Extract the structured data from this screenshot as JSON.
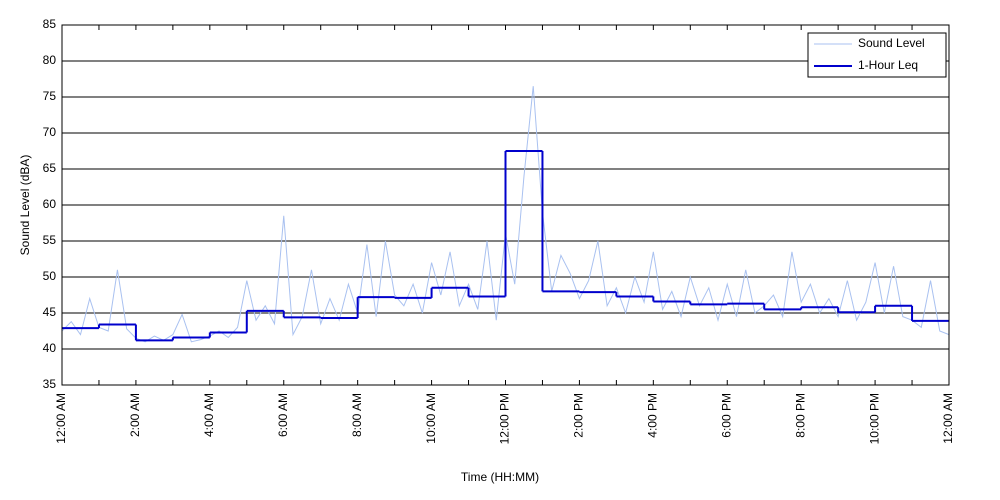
{
  "chart_data": {
    "type": "line",
    "x_label": "Time (HH:MM)",
    "y_label": "Sound Level (dBA)",
    "xlim": [
      0,
      24
    ],
    "ylim": [
      35,
      85
    ],
    "yticks": [
      35,
      40,
      45,
      50,
      55,
      60,
      65,
      70,
      75,
      80,
      85
    ],
    "xticks": [
      0,
      1,
      2,
      3,
      4,
      5,
      6,
      7,
      8,
      9,
      10,
      11,
      12,
      13,
      14,
      15,
      16,
      17,
      18,
      19,
      20,
      21,
      22,
      23,
      24
    ],
    "xtick_labels": [
      "12:00 AM",
      null,
      "2:00 AM",
      null,
      "4:00 AM",
      null,
      "6:00 AM",
      null,
      "8:00 AM",
      null,
      "10:00 AM",
      null,
      "12:00 PM",
      null,
      "2:00 PM",
      null,
      "4:00 PM",
      null,
      "6:00 PM",
      null,
      "8:00 PM",
      null,
      "10:00 PM",
      null,
      "12:00 AM"
    ],
    "grid": true,
    "legend": "upper-right",
    "series": [
      {
        "name": "Sound Level",
        "color": "#a9c1f0",
        "step": false,
        "x": [
          0,
          0.25,
          0.5,
          0.75,
          1,
          1.25,
          1.5,
          1.75,
          2,
          2.25,
          2.5,
          2.75,
          3,
          3.25,
          3.5,
          3.75,
          4,
          4.25,
          4.5,
          4.75,
          5,
          5.25,
          5.5,
          5.75,
          6,
          6.25,
          6.5,
          6.75,
          7,
          7.25,
          7.5,
          7.75,
          8,
          8.25,
          8.5,
          8.75,
          9,
          9.25,
          9.5,
          9.75,
          10,
          10.25,
          10.5,
          10.75,
          11,
          11.25,
          11.5,
          11.75,
          12,
          12.25,
          12.5,
          12.75,
          13,
          13.25,
          13.5,
          13.75,
          14,
          14.25,
          14.5,
          14.75,
          15,
          15.25,
          15.5,
          15.75,
          16,
          16.25,
          16.5,
          16.75,
          17,
          17.25,
          17.5,
          17.75,
          18,
          18.25,
          18.5,
          18.75,
          19,
          19.25,
          19.5,
          19.75,
          20,
          20.25,
          20.5,
          20.75,
          21,
          21.25,
          21.5,
          21.75,
          22,
          22.25,
          22.5,
          22.75,
          23,
          23.25,
          23.5,
          23.75,
          24
        ],
        "values": [
          42.5,
          43.8,
          42.0,
          47.0,
          43.0,
          42.5,
          51.0,
          42.8,
          41.5,
          41.0,
          41.8,
          41.2,
          42.0,
          44.8,
          41.0,
          41.3,
          41.8,
          42.5,
          41.6,
          43.0,
          49.5,
          44.0,
          46.0,
          43.5,
          58.5,
          42.0,
          44.5,
          51.0,
          43.5,
          47.0,
          44.0,
          49.0,
          45.0,
          54.5,
          44.5,
          55.0,
          47.5,
          46.0,
          49.0,
          45.0,
          52.0,
          47.5,
          53.5,
          46.0,
          49.0,
          45.5,
          55.0,
          44.0,
          56.0,
          49.0,
          64.0,
          76.5,
          59.0,
          48.0,
          53.0,
          50.5,
          47.0,
          49.5,
          55.0,
          46.0,
          48.5,
          45.0,
          50.0,
          46.5,
          53.5,
          45.5,
          48.0,
          44.5,
          50.0,
          46.0,
          48.5,
          44.0,
          49.0,
          44.5,
          51.0,
          45.0,
          46.0,
          47.5,
          44.5,
          53.5,
          46.5,
          49.0,
          45.0,
          47.0,
          44.5,
          49.5,
          44.0,
          46.5,
          52.0,
          45.0,
          51.5,
          44.5,
          44.0,
          43.0,
          49.5,
          42.5,
          42.0
        ]
      },
      {
        "name": "1-Hour Leq",
        "color": "#0000cc",
        "step": true,
        "x": [
          0,
          1,
          2,
          3,
          4,
          5,
          6,
          7,
          8,
          9,
          10,
          11,
          12,
          13,
          14,
          15,
          16,
          17,
          18,
          19,
          20,
          21,
          22,
          23
        ],
        "values": [
          42.9,
          43.4,
          41.2,
          41.6,
          42.3,
          45.3,
          44.4,
          44.3,
          47.2,
          47.1,
          48.5,
          47.3,
          67.5,
          48.0,
          47.9,
          47.3,
          46.6,
          46.2,
          46.3,
          45.5,
          45.8,
          45.1,
          46.0,
          43.9
        ]
      }
    ]
  }
}
